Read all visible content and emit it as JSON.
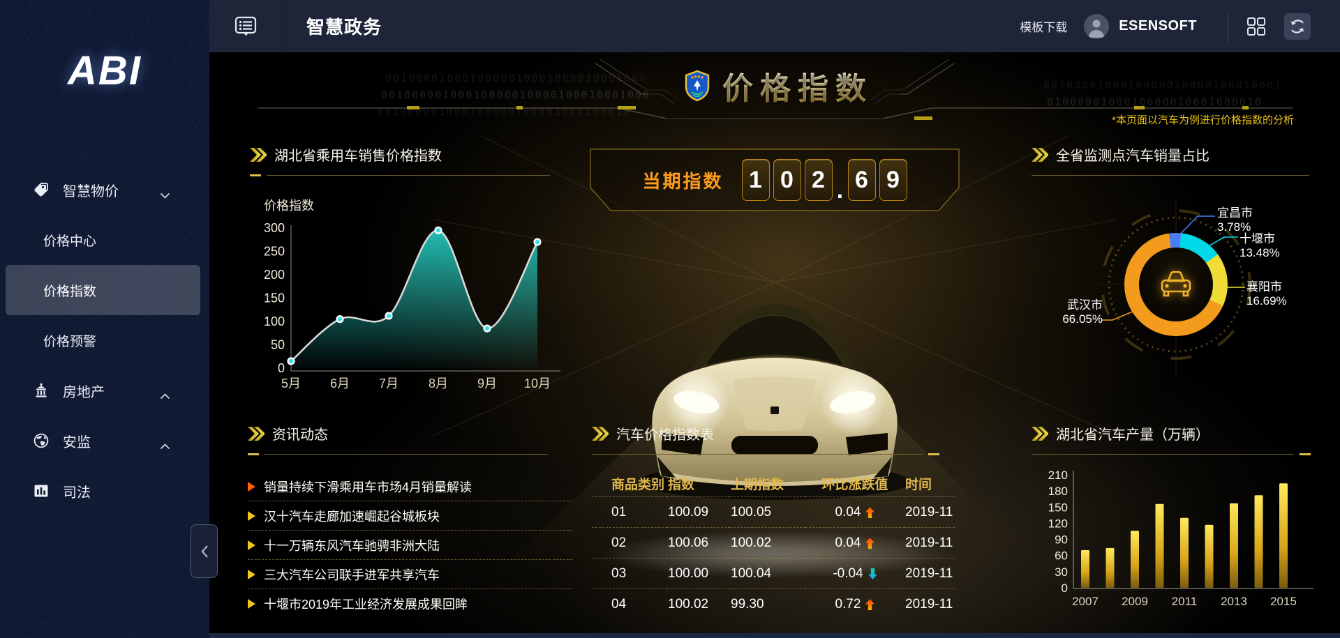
{
  "theme": {
    "gold": "#dcc04a",
    "orange": "#ff9d20",
    "navy": "#101a33",
    "header_navy": "#1e2539",
    "teal": "#25cfc4"
  },
  "header": {
    "menu_icon": "list-bubble-icon",
    "title": "智慧政务",
    "template_download": "模板下载",
    "avatar_icon": "user-avatar-icon",
    "username": "ESENSOFT",
    "grid_icon": "grid-icon",
    "refresh_icon": "refresh-icon"
  },
  "sidebar": {
    "logo": "ABI",
    "items": [
      {
        "label": "智慧物价",
        "icon": "tags-icon",
        "chevron": "down",
        "type": "group",
        "active": false
      },
      {
        "label": "价格中心",
        "type": "sub",
        "active": false
      },
      {
        "label": "价格指数",
        "type": "sub",
        "active": true
      },
      {
        "label": "价格预警",
        "type": "sub",
        "active": false
      },
      {
        "label": "房地产",
        "icon": "building-icon",
        "chevron": "up",
        "type": "group",
        "active": false
      },
      {
        "label": "安监",
        "icon": "globe-icon",
        "chevron": "up",
        "type": "group",
        "active": false
      },
      {
        "label": "司法",
        "icon": "bar-chart-icon",
        "type": "group",
        "active": false
      }
    ],
    "collapse_label": "‹"
  },
  "banner": {
    "badge": "shield-badge-icon",
    "title": "价格指数",
    "note": "*本页面以汽车为例进行价格指数的分析"
  },
  "current_index": {
    "label": "当期指数",
    "value": "102.69"
  },
  "panels": {
    "line": {
      "title": "湖北省乘用车销售价格指数"
    },
    "donut": {
      "title": "全省监测点汽车销量占比"
    },
    "news": {
      "title": "资讯动态",
      "items": [
        "销量持续下滑乘用车市场4月销量解读",
        "汉十汽车走廊加速崛起谷城板块",
        "十一万辆东风汽车驰骋非洲大陆",
        "三大汽车公司联手进军共享汽车",
        "十堰市2019年工业经济发展成果回眸"
      ]
    },
    "table": {
      "title": "汽车价格指数表"
    },
    "bar": {
      "title": "湖北省汽车产量（万辆）"
    }
  },
  "deco": {
    "binary_left": [
      "0010000100010000010001000010001000",
      "00100000100010000010000100010001000",
      "001000001000100000100001000100010"
    ],
    "binary_right": [
      "0010000100010000010000100010001",
      "0100000100010000010001000010"
    ]
  },
  "chart_data": [
    {
      "type": "line",
      "title": "湖北省乘用车销售价格指数",
      "ylabel": "价格指数",
      "xlabel": "",
      "categories": [
        "5月",
        "6月",
        "7月",
        "8月",
        "9月",
        "10月"
      ],
      "values": [
        15,
        105,
        112,
        295,
        85,
        270
      ],
      "ylim": [
        0,
        300
      ],
      "yticks": [
        0,
        50,
        100,
        150,
        200,
        250,
        300
      ],
      "grid": false,
      "line_color": "#d9d9d9",
      "point_color": "#3ae0e8",
      "area_color": "#25cfc4"
    },
    {
      "type": "pie",
      "title": "全省监测点汽车销量占比",
      "unit": "%",
      "labels": [
        "宜昌市",
        "十堰市",
        "襄阳市",
        "武汉市"
      ],
      "values": [
        3.78,
        13.48,
        16.69,
        66.05
      ],
      "colors": [
        "#4a7df5",
        "#00d8e8",
        "#f0dc35",
        "#f29b1d"
      ],
      "center_icon": "car-front-icon"
    },
    {
      "type": "table",
      "title": "汽车价格指数表",
      "columns": [
        "商品类别",
        "指数",
        "上期指数",
        "环比涨跌值",
        "时间"
      ],
      "rows": [
        {
          "category": "01",
          "index": "100.09",
          "prev_index": "100.05",
          "change": "0.04",
          "direction": "up",
          "date": "2019-11"
        },
        {
          "category": "02",
          "index": "100.06",
          "prev_index": "100.02",
          "change": "0.04",
          "direction": "up",
          "date": "2019-11"
        },
        {
          "category": "03",
          "index": "100.00",
          "prev_index": "100.04",
          "change": "-0.04",
          "direction": "down",
          "date": "2019-11"
        },
        {
          "category": "04",
          "index": "100.02",
          "prev_index": "99.30",
          "change": "0.72",
          "direction": "up",
          "date": "2019-11"
        }
      ]
    },
    {
      "type": "bar",
      "title": "湖北省汽车产量（万辆）",
      "ylabel": "",
      "xlabel": "",
      "categories": [
        "2007",
        "2008",
        "2009",
        "2010",
        "2011",
        "2012",
        "2013",
        "2014",
        "2015"
      ],
      "values": [
        70,
        74,
        106,
        156,
        130,
        117,
        157,
        172,
        194
      ],
      "xtick_labels": [
        "2007",
        "2009",
        "2011",
        "2013",
        "2015"
      ],
      "ylim": [
        0,
        210
      ],
      "yticks": [
        0,
        30,
        60,
        90,
        120,
        150,
        180,
        210
      ],
      "bar_color_top": "#ffe95c",
      "bar_color_bottom": "#7a5c0e"
    }
  ]
}
